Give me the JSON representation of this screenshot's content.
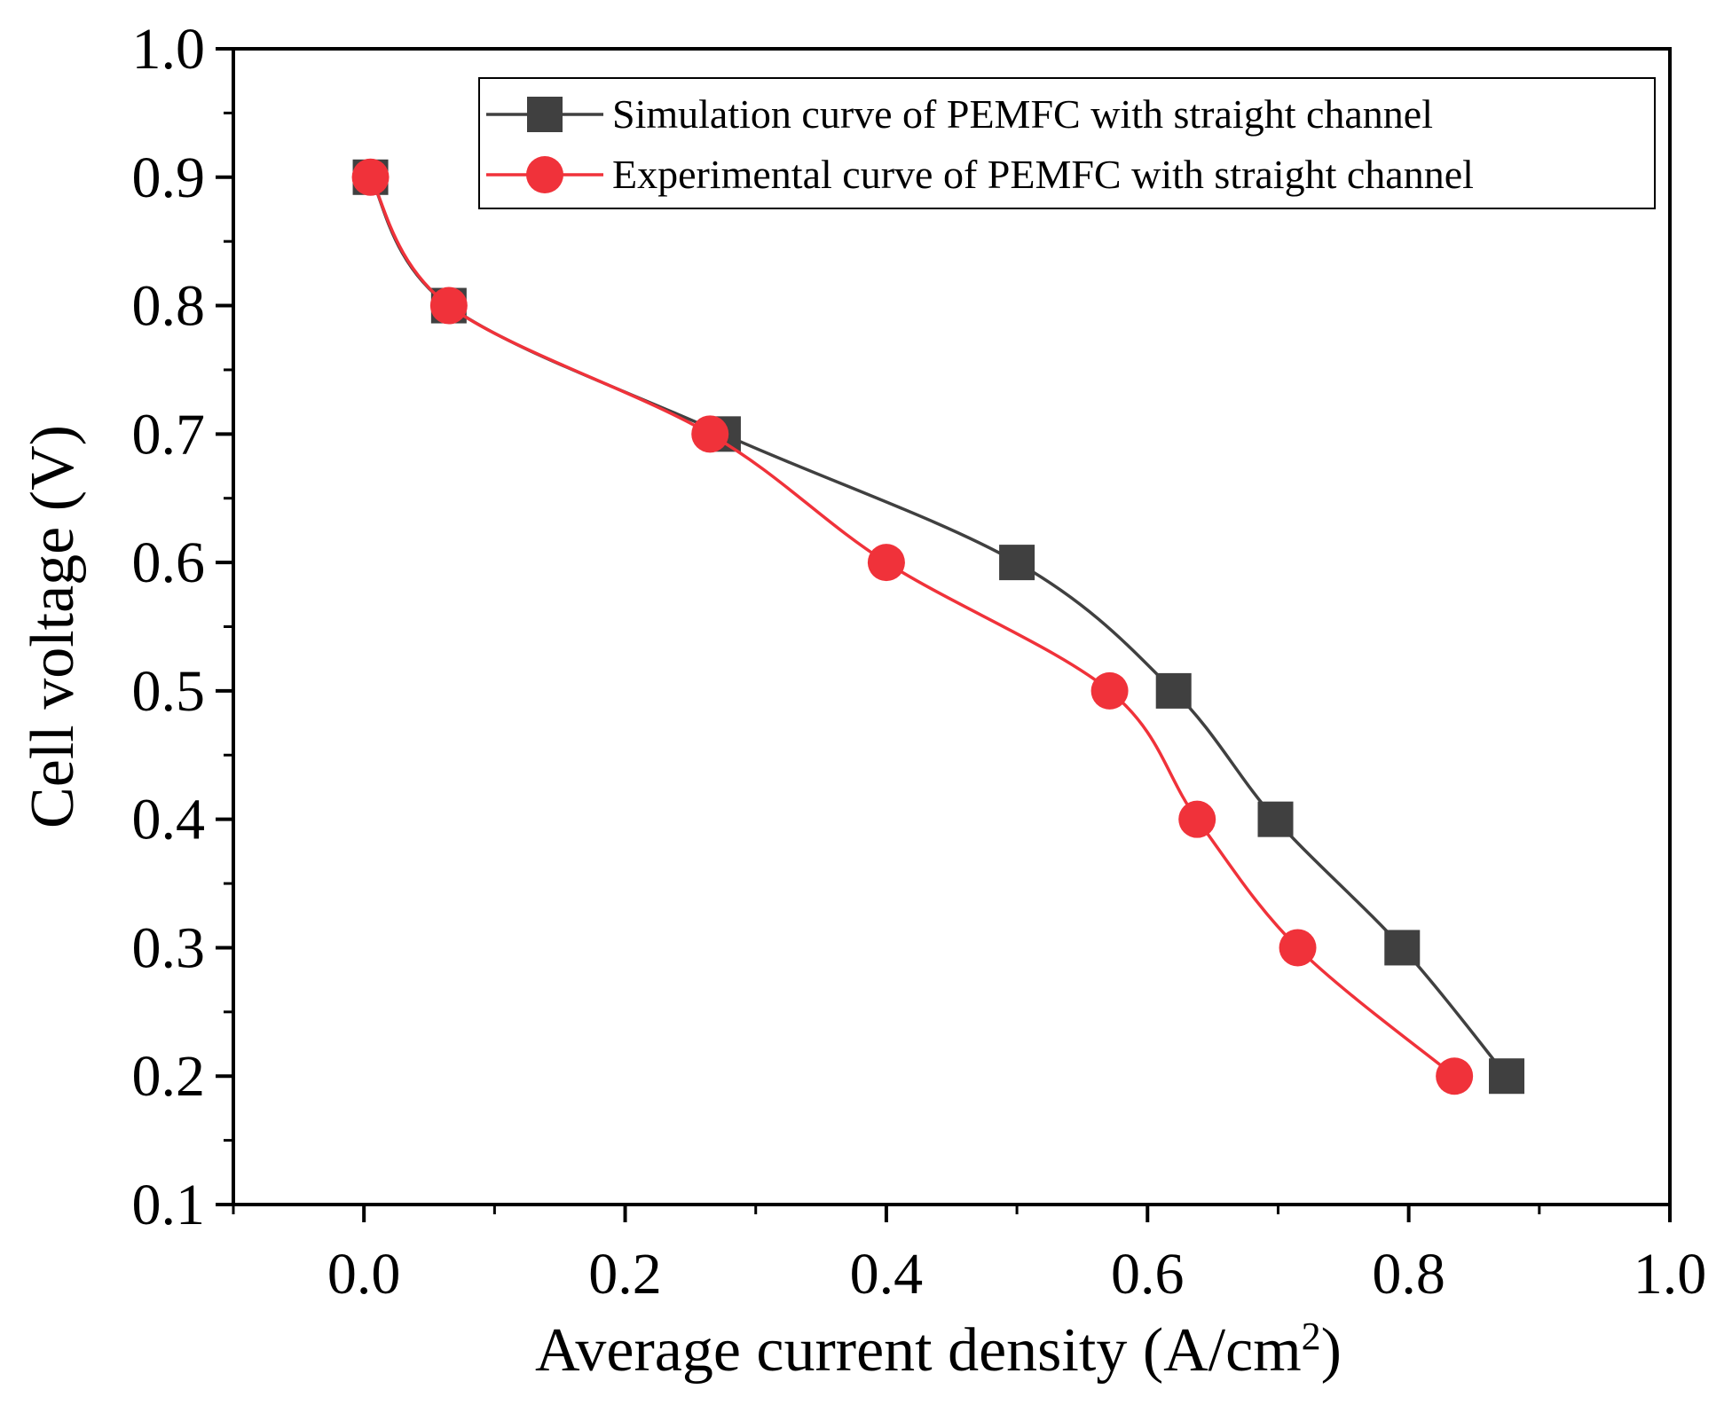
{
  "chart_data": {
    "type": "line",
    "xlabel": "Average current density (A/cm",
    "xlabel_sup": "2",
    "xlabel_close": ")",
    "ylabel": "Cell voltage (V)",
    "xlim": [
      -0.1,
      1.0
    ],
    "ylim": [
      0.1,
      1.0
    ],
    "x_ticks": [
      0.0,
      0.2,
      0.4,
      0.6,
      0.8,
      1.0
    ],
    "x_tick_labels": [
      "0.0",
      "0.2",
      "0.4",
      "0.6",
      "0.8",
      "1.0"
    ],
    "y_ticks": [
      0.1,
      0.2,
      0.3,
      0.4,
      0.5,
      0.6,
      0.7,
      0.8,
      0.9,
      1.0
    ],
    "y_tick_labels": [
      "0.1",
      "0.2",
      "0.3",
      "0.4",
      "0.5",
      "0.6",
      "0.7",
      "0.8",
      "0.9",
      "1.0"
    ],
    "grid": false,
    "legend_position": "top-right",
    "series": [
      {
        "name": "Simulation curve of PEMFC with straight channel",
        "marker": "square",
        "color": "#404040",
        "x": [
          0.005,
          0.065,
          0.275,
          0.5,
          0.62,
          0.698,
          0.795,
          0.875
        ],
        "y": [
          0.9,
          0.8,
          0.7,
          0.6,
          0.5,
          0.4,
          0.3,
          0.2
        ]
      },
      {
        "name": "Experimental curve of PEMFC with straight channel",
        "marker": "circle",
        "color": "#f0323a",
        "x": [
          0.005,
          0.065,
          0.265,
          0.4,
          0.571,
          0.638,
          0.715,
          0.835
        ],
        "y": [
          0.9,
          0.8,
          0.7,
          0.6,
          0.5,
          0.4,
          0.3,
          0.2
        ]
      }
    ]
  }
}
